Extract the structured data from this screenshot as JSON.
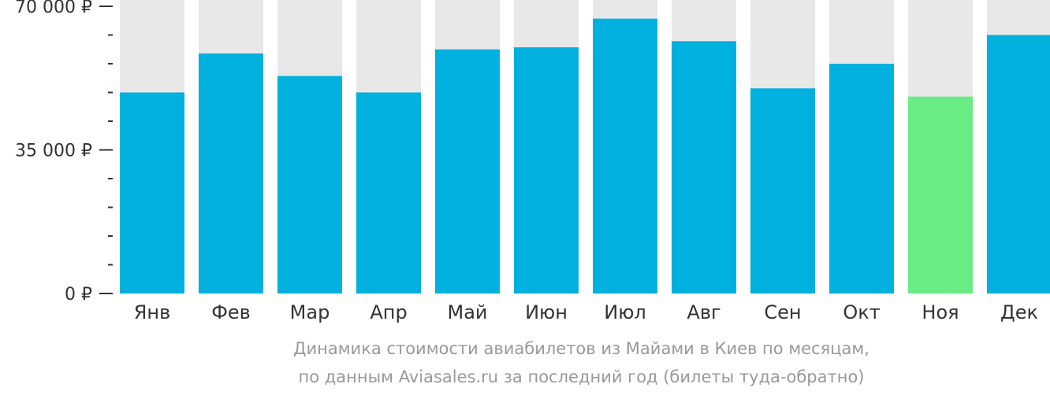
{
  "chart_data": {
    "type": "bar",
    "categories": [
      "Янв",
      "Фев",
      "Мар",
      "Апр",
      "Май",
      "Июн",
      "Июл",
      "Авг",
      "Сен",
      "Окт",
      "Ноя",
      "Дек"
    ],
    "values": [
      49000,
      58500,
      53000,
      49000,
      59500,
      60000,
      67000,
      61500,
      50000,
      56000,
      48000,
      63000
    ],
    "ylim": [
      0,
      70000
    ],
    "y_ticks": [
      {
        "value": 0,
        "label": "0 ₽"
      },
      {
        "value": 35000,
        "label": "35 000 ₽"
      },
      {
        "value": 70000,
        "label": "70 000 ₽"
      }
    ],
    "minor_tick_step": 7000,
    "highlight_category": "Ноя",
    "colors": {
      "bar": "#00b0de",
      "highlight": "#6aec85",
      "background_bar": "#e8e8e8",
      "axis_text": "#333333",
      "caption_text": "#999999"
    },
    "grid": false,
    "legend": "none"
  },
  "caption": {
    "line1": "Динамика стоимости авиабилетов из Майами в Киев по месяцам,",
    "line2": "по данным Aviasales.ru за последний год (билеты туда-обратно)"
  }
}
